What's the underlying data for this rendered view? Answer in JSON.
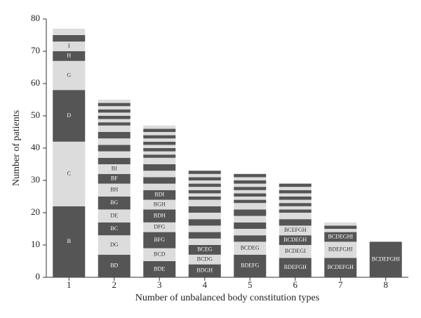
{
  "chart_data": {
    "type": "stacked-bar",
    "x_label": "Number of unbalanced body constitution types",
    "y_label": "Number of patients",
    "ylim": [
      0,
      80
    ],
    "yticks": [
      0,
      10,
      20,
      30,
      40,
      50,
      60,
      70,
      80
    ],
    "colors": [
      "#555555",
      "#dcdcdc"
    ],
    "bars": [
      {
        "category": "1",
        "segments": [
          {
            "label": "B",
            "value": 22
          },
          {
            "label": "C",
            "value": 20
          },
          {
            "label": "D",
            "value": 16
          },
          {
            "label": "G",
            "value": 9
          },
          {
            "label": "H",
            "value": 3
          },
          {
            "label": "I",
            "value": 3
          },
          {
            "value": 2
          },
          {
            "value": 2
          }
        ]
      },
      {
        "category": "2",
        "segments": [
          {
            "label": "BD",
            "value": 7
          },
          {
            "label": "DG",
            "value": 6
          },
          {
            "label": "BC",
            "value": 4
          },
          {
            "label": "DE",
            "value": 4
          },
          {
            "label": "BG",
            "value": 4
          },
          {
            "label": "BH",
            "value": 4
          },
          {
            "label": "BF",
            "value": 3
          },
          {
            "label": "BI",
            "value": 3
          },
          {
            "value": 2
          },
          {
            "value": 2
          },
          {
            "value": 2
          },
          {
            "value": 2
          },
          {
            "value": 2
          },
          {
            "value": 2
          },
          {
            "value": 1
          },
          {
            "value": 1
          },
          {
            "value": 1
          },
          {
            "value": 1
          },
          {
            "value": 1
          },
          {
            "value": 1
          },
          {
            "value": 1
          },
          {
            "value": 1
          }
        ]
      },
      {
        "category": "3",
        "segments": [
          {
            "label": "BDE",
            "value": 5
          },
          {
            "label": "BCD",
            "value": 4
          },
          {
            "label": "BFG",
            "value": 5
          },
          {
            "label": "DFG",
            "value": 3
          },
          {
            "label": "BDH",
            "value": 4
          },
          {
            "label": "BGH",
            "value": 3
          },
          {
            "label": "BDI",
            "value": 3
          },
          {
            "value": 2
          },
          {
            "value": 2
          },
          {
            "value": 2
          },
          {
            "value": 2
          },
          {
            "value": 2
          },
          {
            "value": 1
          },
          {
            "value": 1
          },
          {
            "value": 1
          },
          {
            "value": 1
          },
          {
            "value": 1
          },
          {
            "value": 1
          },
          {
            "value": 1
          },
          {
            "value": 1
          },
          {
            "value": 1
          },
          {
            "value": 1
          }
        ]
      },
      {
        "category": "4",
        "segments": [
          {
            "label": "BDGH",
            "value": 4
          },
          {
            "label": "BCDG",
            "value": 3
          },
          {
            "label": "BCEG",
            "value": 3
          },
          {
            "value": 2
          },
          {
            "value": 2
          },
          {
            "value": 2
          },
          {
            "value": 2
          },
          {
            "value": 2
          },
          {
            "value": 2
          },
          {
            "value": 2
          },
          {
            "value": 1
          },
          {
            "value": 1
          },
          {
            "value": 1
          },
          {
            "value": 1
          },
          {
            "value": 1
          },
          {
            "value": 1
          },
          {
            "value": 1
          },
          {
            "value": 1
          },
          {
            "value": 1
          }
        ]
      },
      {
        "category": "5",
        "segments": [
          {
            "label": "BDEFG",
            "value": 7
          },
          {
            "label": "BCDEG",
            "value": 4
          },
          {
            "value": 2
          },
          {
            "value": 2
          },
          {
            "value": 2
          },
          {
            "value": 2
          },
          {
            "value": 2
          },
          {
            "value": 2
          },
          {
            "value": 1
          },
          {
            "value": 1
          },
          {
            "value": 1
          },
          {
            "value": 1
          },
          {
            "value": 1
          },
          {
            "value": 1
          },
          {
            "value": 1
          },
          {
            "value": 1
          },
          {
            "value": 1
          }
        ]
      },
      {
        "category": "6",
        "segments": [
          {
            "label": "BDEFGH",
            "value": 6
          },
          {
            "label": "BCDEGI",
            "value": 4
          },
          {
            "label": "BCDEGH",
            "value": 3
          },
          {
            "label": "BCEFGH",
            "value": 3
          },
          {
            "value": 2
          },
          {
            "value": 2
          },
          {
            "value": 1
          },
          {
            "value": 1
          },
          {
            "value": 1
          },
          {
            "value": 1
          },
          {
            "value": 1
          },
          {
            "value": 1
          },
          {
            "value": 1
          },
          {
            "value": 1
          },
          {
            "value": 1
          }
        ]
      },
      {
        "category": "7",
        "segments": [
          {
            "label": "BCDEFGH",
            "value": 6
          },
          {
            "label": "BDEFGHI",
            "value": 5
          },
          {
            "label": "BCDEGHI",
            "value": 3
          },
          {
            "value": 1
          },
          {
            "value": 1
          },
          {
            "value": 1
          }
        ]
      },
      {
        "category": "8",
        "segments": [
          {
            "label": "BCDEFGHI",
            "value": 11
          }
        ]
      }
    ]
  }
}
